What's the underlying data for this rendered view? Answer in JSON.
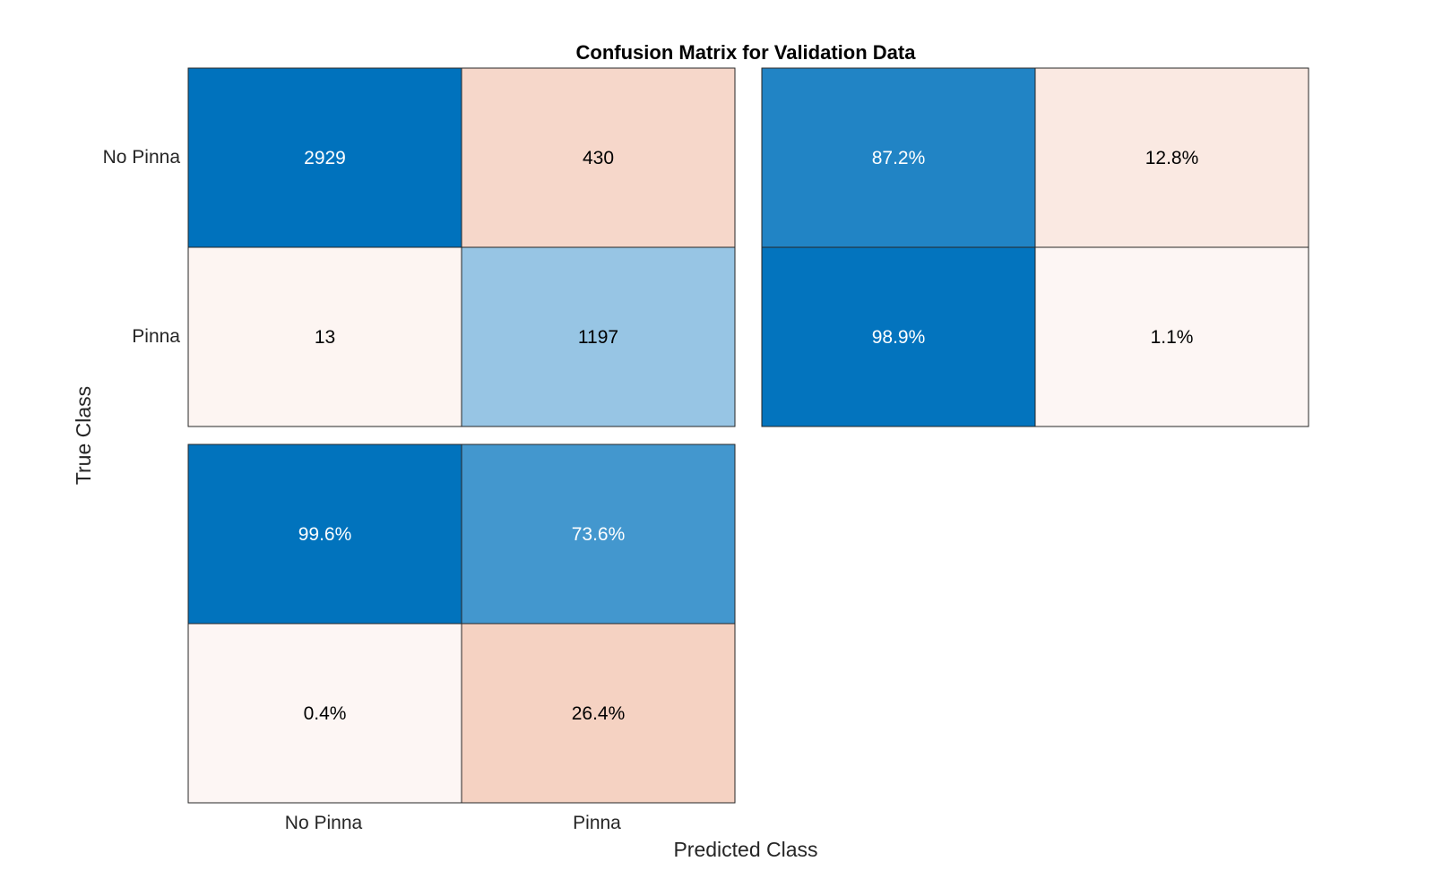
{
  "chart_data": {
    "type": "heatmap",
    "title": "Confusion Matrix for Validation Data",
    "xlabel": "Predicted Class",
    "ylabel": "True Class",
    "classes": [
      "No Pinna",
      "Pinna"
    ],
    "confusion_matrix": {
      "rows": [
        "No Pinna",
        "Pinna"
      ],
      "columns": [
        "No Pinna",
        "Pinna"
      ],
      "values": [
        [
          2929,
          430
        ],
        [
          13,
          1197
        ]
      ],
      "labels": [
        [
          "2929",
          "430"
        ],
        [
          "13",
          "1197"
        ]
      ]
    },
    "row_summary": {
      "values": [
        [
          87.2,
          12.8
        ],
        [
          98.9,
          1.1
        ]
      ],
      "labels": [
        [
          "87.2%",
          "12.8%"
        ],
        [
          "98.9%",
          "1.1%"
        ]
      ]
    },
    "column_summary": {
      "values": [
        [
          99.6,
          73.6
        ],
        [
          0.4,
          26.4
        ]
      ],
      "labels": [
        [
          "99.6%",
          "73.6%"
        ],
        [
          "0.4%",
          "26.4%"
        ]
      ]
    },
    "colors": {
      "diagonal": "#0072BD",
      "off_diagonal": "#D95319",
      "background": "#FFFFFF",
      "light_text": "#FFFFFF",
      "dark_text": "#000000",
      "border": "#262626"
    }
  }
}
